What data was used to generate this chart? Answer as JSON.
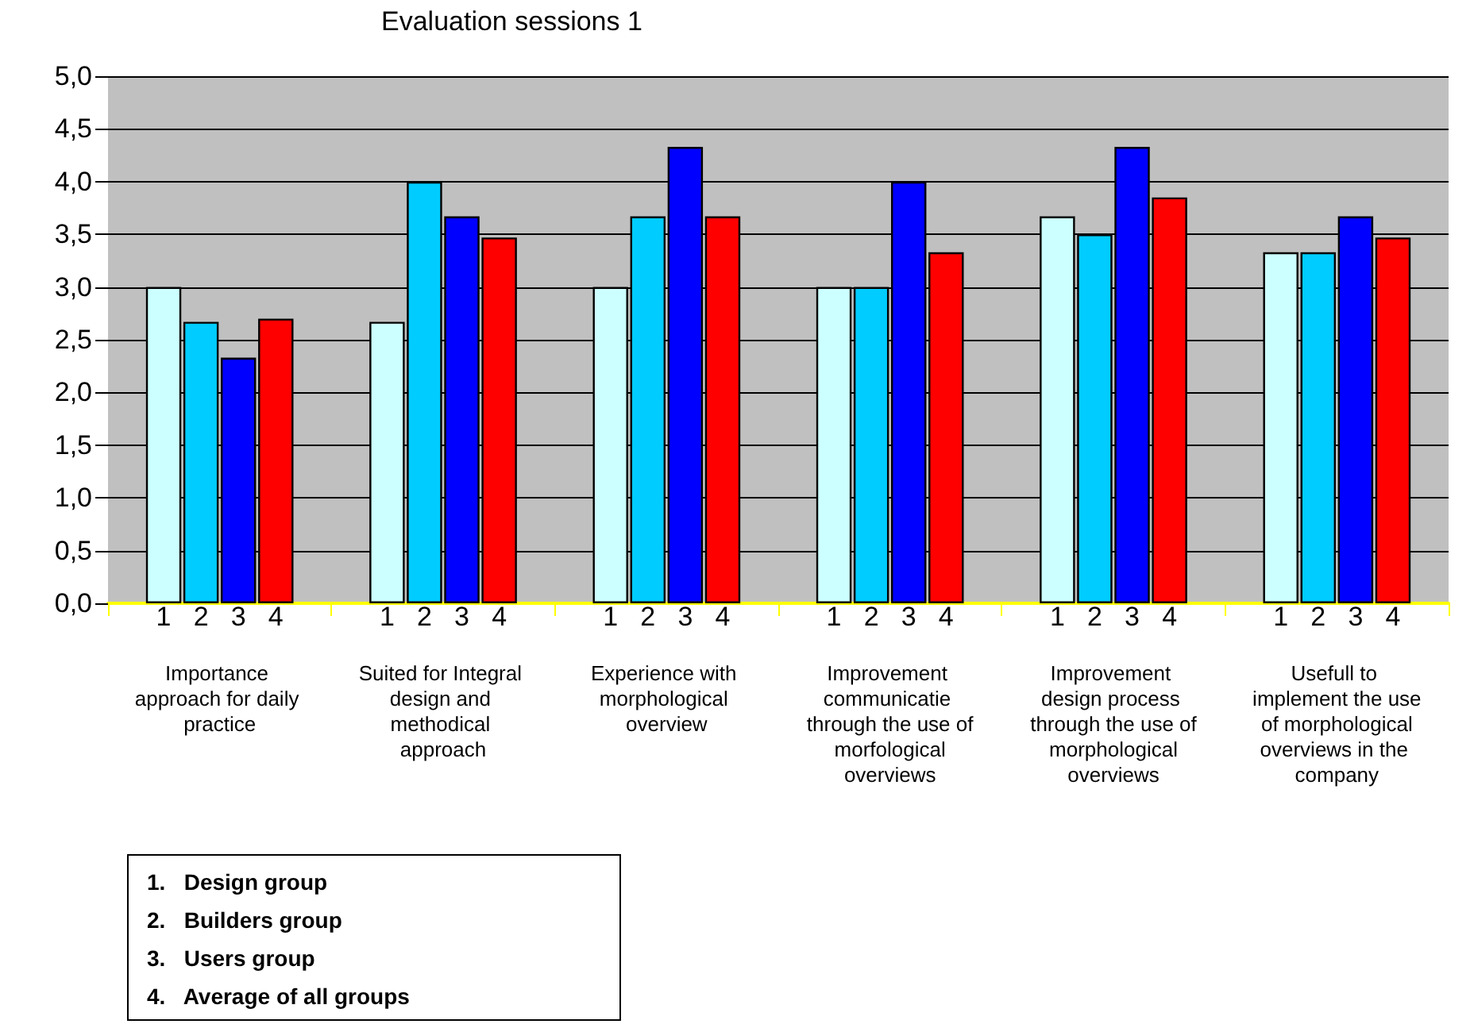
{
  "chart_data": {
    "type": "bar",
    "title": "Evaluation sessions 1",
    "categories": [
      "Importance approach for daily practice",
      "Suited for Integral design and methodical approach",
      "Experience with morphological overview",
      "Improvement communicatie through the use of morfological overviews",
      "Improvement design process through the use of morphological overviews",
      "Usefull to implement the use of morphological overviews in the company"
    ],
    "series": [
      {
        "name": "1",
        "color": "#ccffff",
        "values": [
          3.0,
          2.67,
          3.0,
          3.0,
          3.67,
          3.33
        ]
      },
      {
        "name": "2",
        "color": "#00ccff",
        "values": [
          2.67,
          4.0,
          3.67,
          3.0,
          3.5,
          3.33
        ]
      },
      {
        "name": "3",
        "color": "#0000ff",
        "values": [
          2.33,
          3.67,
          4.33,
          4.0,
          4.33,
          3.67
        ]
      },
      {
        "name": "4",
        "color": "#ff0000",
        "values": [
          2.7,
          3.47,
          3.67,
          3.33,
          3.85,
          3.47
        ]
      }
    ],
    "annotations": [
      "1.   Design group",
      "2.   Builders group",
      "3.   Users group",
      "4.   Average of all groups"
    ],
    "ylim": [
      0,
      5
    ],
    "yticks": [
      {
        "value": 0,
        "label": "0,0"
      },
      {
        "value": 0.5,
        "label": "0,5"
      },
      {
        "value": 1,
        "label": "1,0"
      },
      {
        "value": 1.5,
        "label": "1,5"
      },
      {
        "value": 2,
        "label": "2,0"
      },
      {
        "value": 2.5,
        "label": "2,5"
      },
      {
        "value": 3,
        "label": "3,0"
      },
      {
        "value": 3.5,
        "label": "3,5"
      },
      {
        "value": 4,
        "label": "4,0"
      },
      {
        "value": 4.5,
        "label": "4,5"
      },
      {
        "value": 5,
        "label": "5,0"
      }
    ],
    "grid": "y"
  }
}
